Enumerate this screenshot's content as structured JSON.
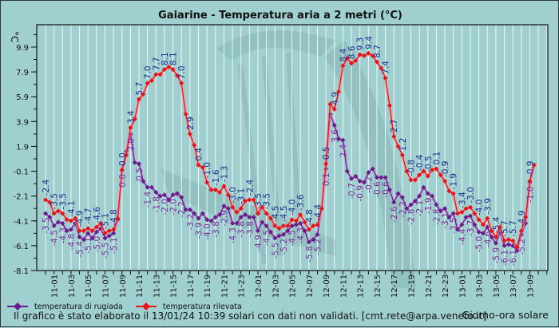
{
  "title": "Gaiarine - Temperatura aria a 2 metri (°C)",
  "y_unit": "°C",
  "x_title": "Giorno-ora solare",
  "footer": "Il grafico è stato elaborato il 13/01/24 10:39 solari con dati non validati. [cmt.rete@arpa.veneto.it]",
  "colors": {
    "background": "#9fcfcf",
    "temperature": "#e8121b",
    "dewpoint": "#6a1b8a",
    "temp_label": "#1c2a8c",
    "dew_label": "#7a2a9a",
    "grid": "#ffffff"
  },
  "chart_data": {
    "type": "line",
    "title": "Gaiarine - Temperatura aria a 2 metri (°C)",
    "xlabel": "Giorno-ora solare",
    "ylabel": "°C",
    "ylim": [
      -8.1,
      11.7
    ],
    "y_ticks": [
      "9.9",
      "7.9",
      "5.9",
      "3.9",
      "1.9",
      "-0.1",
      "-2.1",
      "-4.1",
      "-6.1",
      "-8.1"
    ],
    "x_start": "11-00:00",
    "x_step_hours": 0.5,
    "x_ticks": [
      "11-01",
      "11-03",
      "11-05",
      "11-07",
      "11-09",
      "11-11",
      "11-13",
      "11-15",
      "11-17",
      "11-19",
      "11-21",
      "11-23",
      "12-01",
      "12-03",
      "12-05",
      "12-07",
      "12-09",
      "12-11",
      "12-13",
      "12-15",
      "12-17",
      "12-19",
      "12-21",
      "12-23",
      "13-01",
      "13-03",
      "13-05",
      "13-07",
      "13-09"
    ],
    "grid": true,
    "legend_placement": "bottom-left",
    "series": [
      {
        "name": "temperatura di rugiada",
        "color": "#6a1b8a",
        "values": [
          -3.5,
          -3.8,
          -4.5,
          -4.2,
          -4.3,
          -4.9,
          -4.8,
          -4.3,
          -5.4,
          -5.6,
          -5.1,
          -5.5,
          -5.0,
          -4.7,
          -5.5,
          -5.3,
          -5.1,
          -4.0,
          0.0,
          1.5,
          2.9,
          0.6,
          0.5,
          -0.9,
          -1.4,
          -1.4,
          -1.8,
          -2.1,
          -2.0,
          -2.4,
          -2.0,
          -1.9,
          -2.2,
          -3.2,
          -3.2,
          -3.5,
          -3.9,
          -3.5,
          -4.0,
          -4.1,
          -3.8,
          -3.6,
          -2.9,
          -3.1,
          -4.3,
          -4.3,
          -3.8,
          -3.6,
          -3.8,
          -3.8,
          -4.9,
          -4.2,
          -4.5,
          -5.0,
          -5.5,
          -5.3,
          -5.2,
          -4.9,
          -4.5,
          -4.4,
          -4.3,
          -4.9,
          -5.8,
          -5.6,
          -5.2,
          -3.1,
          0.1,
          4.5,
          3.6,
          2.5,
          2.4,
          -0.1,
          -0.7,
          -0.5,
          -0.9,
          -1.0,
          -0.2,
          0.1,
          -0.6,
          -0.6,
          -0.6,
          -1.6,
          -2.6,
          -1.9,
          -2.2,
          -3.1,
          -2.8,
          -2.5,
          -2.1,
          -1.4,
          -1.9,
          -2.1,
          -2.8,
          -3.3,
          -3.1,
          -3.8,
          -3.5,
          -4.8,
          -4.4,
          -3.8,
          -3.7,
          -4.4,
          -5.0,
          -5.1,
          -4.6,
          -5.4,
          -5.9,
          -5.0,
          -6.1,
          -6.0,
          -6.1,
          -6.5,
          -5.2,
          -4.3,
          -1.0,
          0.4
        ]
      },
      {
        "name": "temperatura rilevata",
        "color": "#e8121b",
        "values": [
          -2.4,
          -2.6,
          -3.5,
          -3.3,
          -3.5,
          -4.0,
          -4.1,
          -3.9,
          -4.9,
          -4.9,
          -4.7,
          -4.9,
          -4.6,
          -4.3,
          -5.1,
          -4.9,
          -4.8,
          -3.9,
          0.0,
          1.2,
          3.4,
          4.1,
          5.7,
          6.1,
          7.0,
          7.2,
          7.7,
          7.7,
          8.1,
          8.3,
          8.1,
          7.6,
          7.0,
          4.5,
          2.9,
          2.0,
          0.4,
          0.2,
          -1.0,
          -1.6,
          -1.6,
          -1.8,
          -1.3,
          -2.0,
          -3.0,
          -3.4,
          -3.1,
          -2.5,
          -2.4,
          -2.4,
          -3.5,
          -3.0,
          -3.5,
          -3.9,
          -4.5,
          -4.7,
          -4.5,
          -4.5,
          -4.0,
          -4.1,
          -3.6,
          -4.2,
          -4.8,
          -4.5,
          -4.4,
          -3.1,
          0.5,
          5.3,
          4.9,
          6.3,
          8.4,
          9.0,
          8.6,
          8.8,
          9.3,
          9.2,
          9.4,
          9.2,
          8.7,
          8.2,
          7.4,
          5.2,
          2.7,
          1.9,
          1.2,
          -0.1,
          -0.8,
          -0.8,
          -0.4,
          -0.1,
          -0.5,
          0.0,
          0.1,
          -0.4,
          -0.9,
          -1.7,
          -1.9,
          -3.5,
          -3.4,
          -3.1,
          -3.0,
          -3.5,
          -4.0,
          -4.4,
          -3.9,
          -4.9,
          -5.4,
          -4.6,
          -5.7,
          -5.6,
          -5.7,
          -6.2,
          -4.9,
          -3.8,
          -0.9,
          0.4
        ]
      }
    ]
  }
}
